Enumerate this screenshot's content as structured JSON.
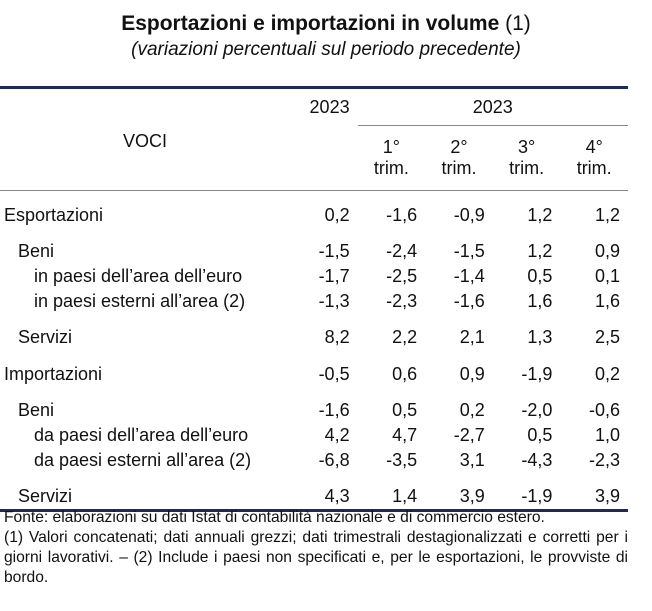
{
  "title": "Esportazioni e importazioni in volume",
  "title_note": "(1)",
  "subtitle": "(variazioni percentuali sul periodo precedente)",
  "header": {
    "voci": "VOCI",
    "annual_year": "2023",
    "quarter_year": "2023",
    "quarters": [
      {
        "num": "1°",
        "label": "trim."
      },
      {
        "num": "2°",
        "label": "trim."
      },
      {
        "num": "3°",
        "label": "trim."
      },
      {
        "num": "4°",
        "label": "trim."
      }
    ]
  },
  "rows": [
    {
      "label": "Esportazioni",
      "values": [
        "0,2",
        "-1,6",
        "-0,9",
        "1,2",
        "1,2"
      ]
    },
    {
      "label": "Beni",
      "values": [
        "-1,5",
        "-2,4",
        "-1,5",
        "1,2",
        "0,9"
      ]
    },
    {
      "label": "in paesi dell’area dell’euro",
      "values": [
        "-1,7",
        "-2,5",
        "-1,4",
        "0,5",
        "0,1"
      ]
    },
    {
      "label": "in paesi esterni all’area (2)",
      "values": [
        "-1,3",
        "-2,3",
        "-1,6",
        "1,6",
        "1,6"
      ]
    },
    {
      "label": "Servizi",
      "values": [
        "8,2",
        "2,2",
        "2,1",
        "1,3",
        "2,5"
      ]
    },
    {
      "label": "Importazioni",
      "values": [
        "-0,5",
        "0,6",
        "0,9",
        "-1,9",
        "0,2"
      ]
    },
    {
      "label": "Beni",
      "values": [
        "-1,6",
        "0,5",
        "0,2",
        "-2,0",
        "-0,6"
      ]
    },
    {
      "label": "da paesi dell’area dell’euro",
      "values": [
        "4,2",
        "4,7",
        "-2,7",
        "0,5",
        "1,0"
      ]
    },
    {
      "label": "da paesi esterni all’area (2)",
      "values": [
        "-6,8",
        "-3,5",
        "3,1",
        "-4,3",
        "-2,3"
      ]
    },
    {
      "label": "Servizi",
      "values": [
        "4,3",
        "1,4",
        "3,9",
        "-1,9",
        "3,9"
      ]
    }
  ],
  "footnote": [
    "Fonte: elaborazioni su dati Istat di contabilità nazionale e di commercio estero.",
    "(1) Valori concatenati; dati annuali grezzi; dati trimestrali destagionalizzati e corretti per i giorni lavorativi. – (2) Include i paesi non specificati e, per le esportazioni, le provviste di bordo."
  ],
  "colors": {
    "rule": "#1f2a5a",
    "thin_rule": "#8a8a8a",
    "text": "#111111"
  }
}
